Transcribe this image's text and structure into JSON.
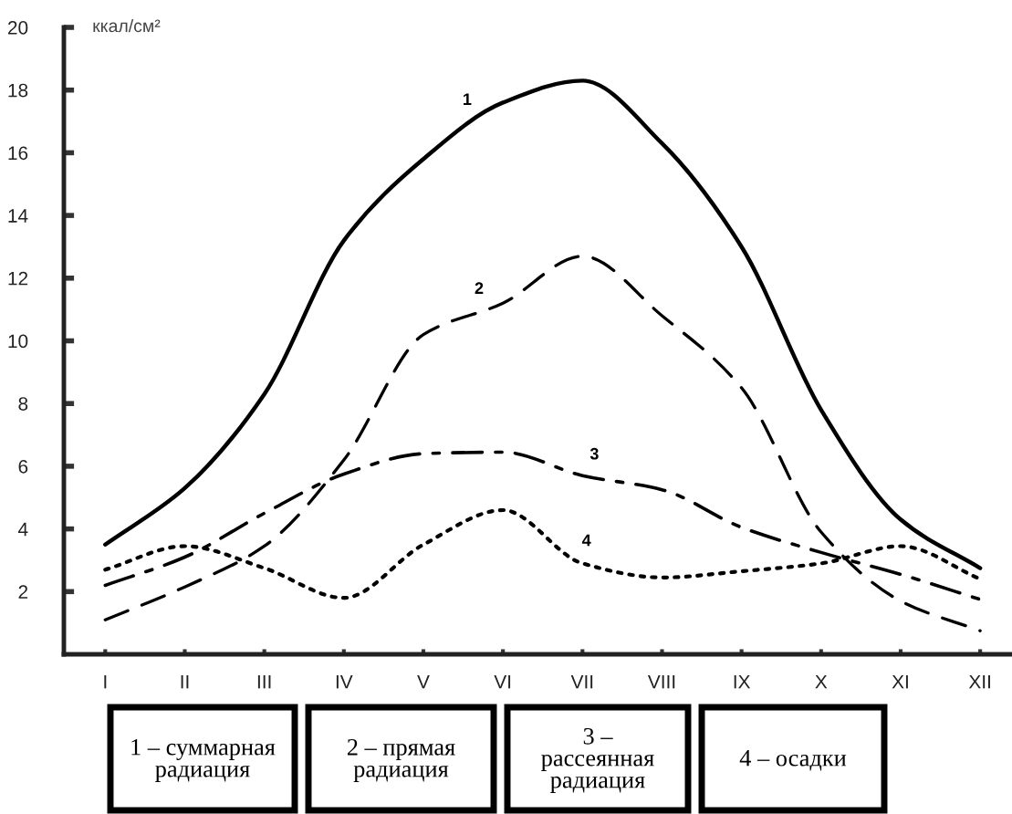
{
  "chart_data": {
    "type": "line",
    "ylabel": "ккал/см²",
    "categories": [
      "I",
      "II",
      "III",
      "IV",
      "V",
      "VI",
      "VII",
      "VIII",
      "IX",
      "X",
      "XI",
      "XII"
    ],
    "ylim": [
      0,
      20
    ],
    "yticks": [
      2,
      4,
      6,
      8,
      10,
      12,
      14,
      16,
      18,
      20
    ],
    "grid": false,
    "legend": false,
    "marker": "none",
    "series": [
      {
        "name": "1",
        "color": "#000000",
        "line_style": "solid",
        "values": [
          3.5,
          5.3,
          8.3,
          13.2,
          15.8,
          17.6,
          18.3,
          16.3,
          13.0,
          7.8,
          4.3,
          2.75
        ]
      },
      {
        "name": "2",
        "color": "#000000",
        "line_style": "dashed",
        "values": [
          1.1,
          2.15,
          3.45,
          6.2,
          10.2,
          11.2,
          12.7,
          10.8,
          8.5,
          3.9,
          1.7,
          0.75
        ]
      },
      {
        "name": "3",
        "color": "#000000",
        "line_style": "dashdot",
        "values": [
          2.2,
          3.1,
          4.5,
          5.75,
          6.4,
          6.45,
          5.7,
          5.25,
          4.05,
          3.25,
          2.55,
          1.75
        ]
      },
      {
        "name": "4",
        "color": "#000000",
        "line_style": "dotted",
        "values": [
          2.7,
          3.45,
          2.75,
          1.8,
          3.5,
          4.6,
          2.9,
          2.45,
          2.65,
          2.9,
          3.45,
          2.4
        ]
      }
    ],
    "annotations": [
      "1 – суммарная\nрадиация",
      "2 – прямая\nрадиация",
      "3 –\nрассеянная\nрадиация",
      "4 – осадки"
    ]
  }
}
